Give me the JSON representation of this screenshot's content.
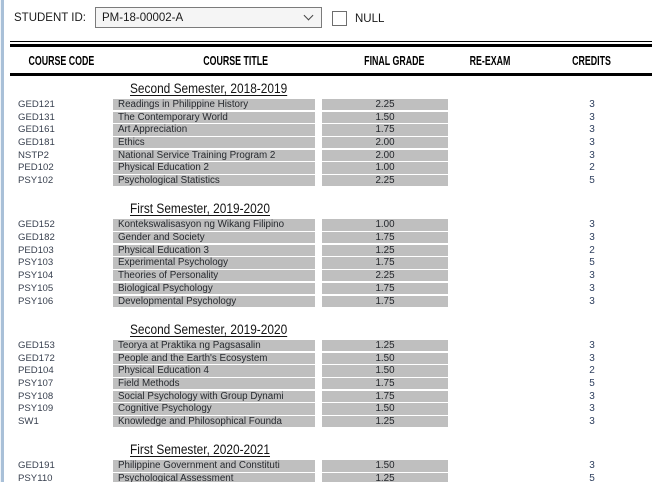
{
  "header": {
    "student_id_label": "STUDENT ID:",
    "student_id_value": "PM-18-00002-A",
    "null_label": "NULL",
    "null_checked": false
  },
  "table": {
    "columns": [
      "COURSE CODE",
      "COURSE TITLE",
      "FINAL GRADE",
      "RE-EXAM",
      "CREDITS"
    ],
    "sections": [
      {
        "title": "Second Semester, 2018-2019",
        "rows": [
          {
            "code": "GED121",
            "title": "Readings in Philippine History",
            "grade": "2.25",
            "re_exam": "",
            "credits": "3"
          },
          {
            "code": "GED131",
            "title": "The Contemporary World",
            "grade": "1.50",
            "re_exam": "",
            "credits": "3"
          },
          {
            "code": "GED161",
            "title": "Art Appreciation",
            "grade": "1.75",
            "re_exam": "",
            "credits": "3"
          },
          {
            "code": "GED181",
            "title": "Ethics",
            "grade": "2.00",
            "re_exam": "",
            "credits": "3"
          },
          {
            "code": "NSTP2",
            "title": "National Service Training Program 2",
            "grade": "2.00",
            "re_exam": "",
            "credits": "3"
          },
          {
            "code": "PED102",
            "title": "Physical Education 2",
            "grade": "1.00",
            "re_exam": "",
            "credits": "2"
          },
          {
            "code": "PSY102",
            "title": "Psychological Statistics",
            "grade": "2.25",
            "re_exam": "",
            "credits": "5"
          }
        ]
      },
      {
        "title": "First Semester, 2019-2020",
        "rows": [
          {
            "code": "GED152",
            "title": "Kontekswalisasyon ng Wikang Filipino",
            "grade": "1.00",
            "re_exam": "",
            "credits": "3"
          },
          {
            "code": "GED182",
            "title": "Gender and Society",
            "grade": "1.75",
            "re_exam": "",
            "credits": "3"
          },
          {
            "code": "PED103",
            "title": "Physical Education 3",
            "grade": "1.25",
            "re_exam": "",
            "credits": "2"
          },
          {
            "code": "PSY103",
            "title": "Experimental Psychology",
            "grade": "1.75",
            "re_exam": "",
            "credits": "5"
          },
          {
            "code": "PSY104",
            "title": "Theories of Personality",
            "grade": "2.25",
            "re_exam": "",
            "credits": "3"
          },
          {
            "code": "PSY105",
            "title": "Biological Psychology",
            "grade": "1.75",
            "re_exam": "",
            "credits": "3"
          },
          {
            "code": "PSY106",
            "title": "Developmental Psychology",
            "grade": "1.75",
            "re_exam": "",
            "credits": "3"
          }
        ]
      },
      {
        "title": "Second Semester, 2019-2020",
        "rows": [
          {
            "code": "GED153",
            "title": "Teorya at Praktika ng Pagsasalin",
            "grade": "1.25",
            "re_exam": "",
            "credits": "3"
          },
          {
            "code": "GED172",
            "title": "People and the Earth's Ecosystem",
            "grade": "1.50",
            "re_exam": "",
            "credits": "3"
          },
          {
            "code": "PED104",
            "title": "Physical Education 4",
            "grade": "1.50",
            "re_exam": "",
            "credits": "2"
          },
          {
            "code": "PSY107",
            "title": "Field Methods",
            "grade": "1.75",
            "re_exam": "",
            "credits": "5"
          },
          {
            "code": "PSY108",
            "title": "Social Psychology with Group Dynami",
            "grade": "1.75",
            "re_exam": "",
            "credits": "3"
          },
          {
            "code": "PSY109",
            "title": "Cognitive Psychology",
            "grade": "1.50",
            "re_exam": "",
            "credits": "3"
          },
          {
            "code": "SW1",
            "title": "Knowledge and Philosophical Founda",
            "grade": "1.25",
            "re_exam": "",
            "credits": "3"
          }
        ]
      },
      {
        "title": "First Semester, 2020-2021",
        "rows": [
          {
            "code": "GED191",
            "title": "Philippine Government and Constituti",
            "grade": "1.50",
            "re_exam": "",
            "credits": "3"
          },
          {
            "code": "PSY110",
            "title": "Psychological Assessment",
            "grade": "1.25",
            "re_exam": "",
            "credits": "5"
          }
        ]
      }
    ]
  },
  "colors": {
    "cell_gray": "#bfbfbf",
    "rule_black": "#000000",
    "left_strip_blue": "#a9c0d8",
    "credits_text": "#2e3f5e"
  }
}
